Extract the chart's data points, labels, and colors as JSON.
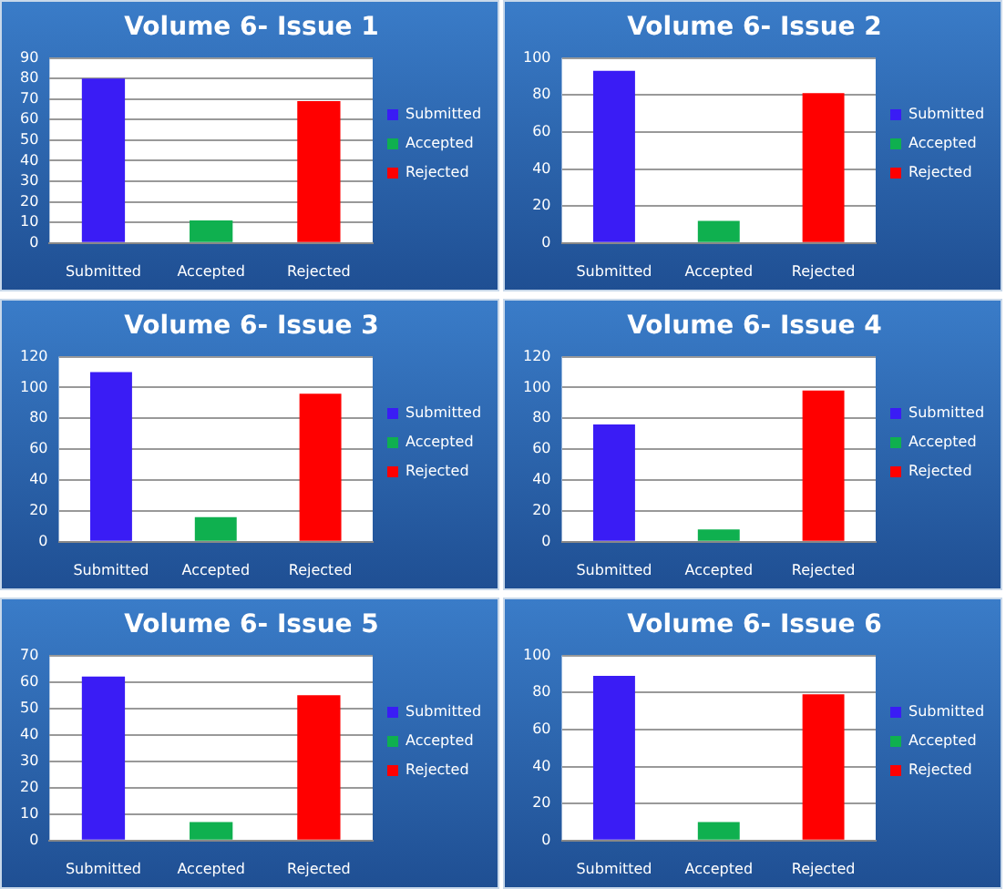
{
  "chart_data": [
    {
      "type": "bar",
      "title": "Volume 6- Issue 1",
      "categories": [
        "Submitted",
        "Accepted",
        "Rejected"
      ],
      "series": [
        {
          "name": "Submitted",
          "color": "#3a1cf5",
          "values": [
            80,
            null,
            null
          ]
        },
        {
          "name": "Accepted",
          "color": "#0fb04f",
          "values": [
            null,
            11,
            null
          ]
        },
        {
          "name": "Rejected",
          "color": "#ff0000",
          "values": [
            null,
            null,
            69
          ]
        }
      ],
      "ylim": [
        0,
        90
      ],
      "yticks": [
        0,
        10,
        20,
        30,
        40,
        50,
        60,
        70,
        80,
        90
      ],
      "grid": "y",
      "legend": "right"
    },
    {
      "type": "bar",
      "title": "Volume 6- Issue 2",
      "categories": [
        "Submitted",
        "Accepted",
        "Rejected"
      ],
      "series": [
        {
          "name": "Submitted",
          "color": "#3a1cf5",
          "values": [
            93,
            null,
            null
          ]
        },
        {
          "name": "Accepted",
          "color": "#0fb04f",
          "values": [
            null,
            12,
            null
          ]
        },
        {
          "name": "Rejected",
          "color": "#ff0000",
          "values": [
            null,
            null,
            81
          ]
        }
      ],
      "ylim": [
        0,
        100
      ],
      "yticks": [
        0,
        20,
        40,
        60,
        80,
        100
      ],
      "grid": "y",
      "legend": "right"
    },
    {
      "type": "bar",
      "title": "Volume 6- Issue 3",
      "categories": [
        "Submitted",
        "Accepted",
        "Rejected"
      ],
      "series": [
        {
          "name": "Submitted",
          "color": "#3a1cf5",
          "values": [
            110,
            null,
            null
          ]
        },
        {
          "name": "Accepted",
          "color": "#0fb04f",
          "values": [
            null,
            16,
            null
          ]
        },
        {
          "name": "Rejected",
          "color": "#ff0000",
          "values": [
            null,
            null,
            96
          ]
        }
      ],
      "ylim": [
        0,
        120
      ],
      "yticks": [
        0,
        20,
        40,
        60,
        80,
        100,
        120
      ],
      "grid": "y",
      "legend": "right"
    },
    {
      "type": "bar",
      "title": "Volume 6- Issue 4",
      "categories": [
        "Submitted",
        "Accepted",
        "Rejected"
      ],
      "series": [
        {
          "name": "Submitted",
          "color": "#3a1cf5",
          "values": [
            76,
            null,
            null
          ]
        },
        {
          "name": "Accepted",
          "color": "#0fb04f",
          "values": [
            null,
            8,
            null
          ]
        },
        {
          "name": "Rejected",
          "color": "#ff0000",
          "values": [
            null,
            null,
            98
          ]
        }
      ],
      "ylim": [
        0,
        120
      ],
      "yticks": [
        0,
        20,
        40,
        60,
        80,
        100,
        120
      ],
      "grid": "y",
      "legend": "right"
    },
    {
      "type": "bar",
      "title": "Volume 6- Issue 5",
      "categories": [
        "Submitted",
        "Accepted",
        "Rejected"
      ],
      "series": [
        {
          "name": "Submitted",
          "color": "#3a1cf5",
          "values": [
            62,
            null,
            null
          ]
        },
        {
          "name": "Accepted",
          "color": "#0fb04f",
          "values": [
            null,
            7,
            null
          ]
        },
        {
          "name": "Rejected",
          "color": "#ff0000",
          "values": [
            null,
            null,
            55
          ]
        }
      ],
      "ylim": [
        0,
        70
      ],
      "yticks": [
        0,
        10,
        20,
        30,
        40,
        50,
        60,
        70
      ],
      "grid": "y",
      "legend": "right"
    },
    {
      "type": "bar",
      "title": "Volume 6- Issue 6",
      "categories": [
        "Submitted",
        "Accepted",
        "Rejected"
      ],
      "series": [
        {
          "name": "Submitted",
          "color": "#3a1cf5",
          "values": [
            89,
            null,
            null
          ]
        },
        {
          "name": "Accepted",
          "color": "#0fb04f",
          "values": [
            null,
            10,
            null
          ]
        },
        {
          "name": "Rejected",
          "color": "#ff0000",
          "values": [
            null,
            null,
            79
          ]
        }
      ],
      "ylim": [
        0,
        100
      ],
      "yticks": [
        0,
        20,
        40,
        60,
        80,
        100
      ],
      "grid": "y",
      "legend": "right"
    }
  ]
}
